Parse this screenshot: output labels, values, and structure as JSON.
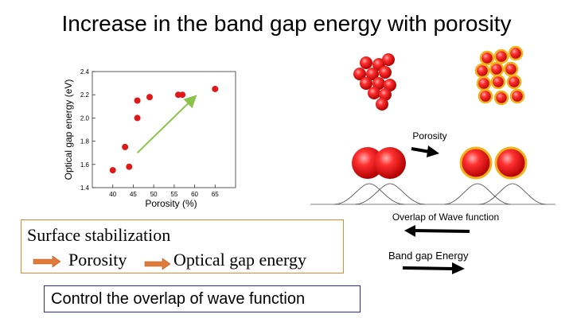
{
  "title": "Increase in the band gap energy with porosity",
  "chart_data": {
    "type": "scatter",
    "xlabel": "Porosity (%)",
    "ylabel": "Optical gap energy (eV)",
    "xlim": [
      35,
      70
    ],
    "ylim": [
      1.4,
      2.4
    ],
    "xticks": [
      "40",
      "45",
      "50",
      "55",
      "60",
      "65"
    ],
    "yticks": [
      "1.4",
      "1.6",
      "1.8",
      "2.0",
      "2.2",
      "2.4"
    ],
    "points": [
      {
        "x": 40,
        "y": 1.55
      },
      {
        "x": 43,
        "y": 1.75
      },
      {
        "x": 44,
        "y": 1.58
      },
      {
        "x": 46,
        "y": 2.0
      },
      {
        "x": 46,
        "y": 2.15
      },
      {
        "x": 49,
        "y": 2.18
      },
      {
        "x": 56,
        "y": 2.2
      },
      {
        "x": 57,
        "y": 2.2
      },
      {
        "x": 65,
        "y": 2.25
      }
    ],
    "trend_arrow": {
      "from": [
        46,
        1.7
      ],
      "to": [
        60,
        2.18
      ],
      "color": "#8bc34a"
    },
    "marker_color": "#e01818",
    "grid": false
  },
  "diagram": {
    "porosity_label": "Porosity",
    "overlap_label": "Overlap of Wave function",
    "bandgap_label": "Band gap Energy",
    "particle_color": "#e01818",
    "shell_color": "#f2b21a"
  },
  "summary": {
    "surface_label": "Surface stabilization",
    "porosity_label": "Porosity",
    "optgap_label": "Optical gap energy",
    "box_color": "#d9893a",
    "arrow_color": "#e07a3a"
  },
  "control_label": "Control the overlap of wave function"
}
